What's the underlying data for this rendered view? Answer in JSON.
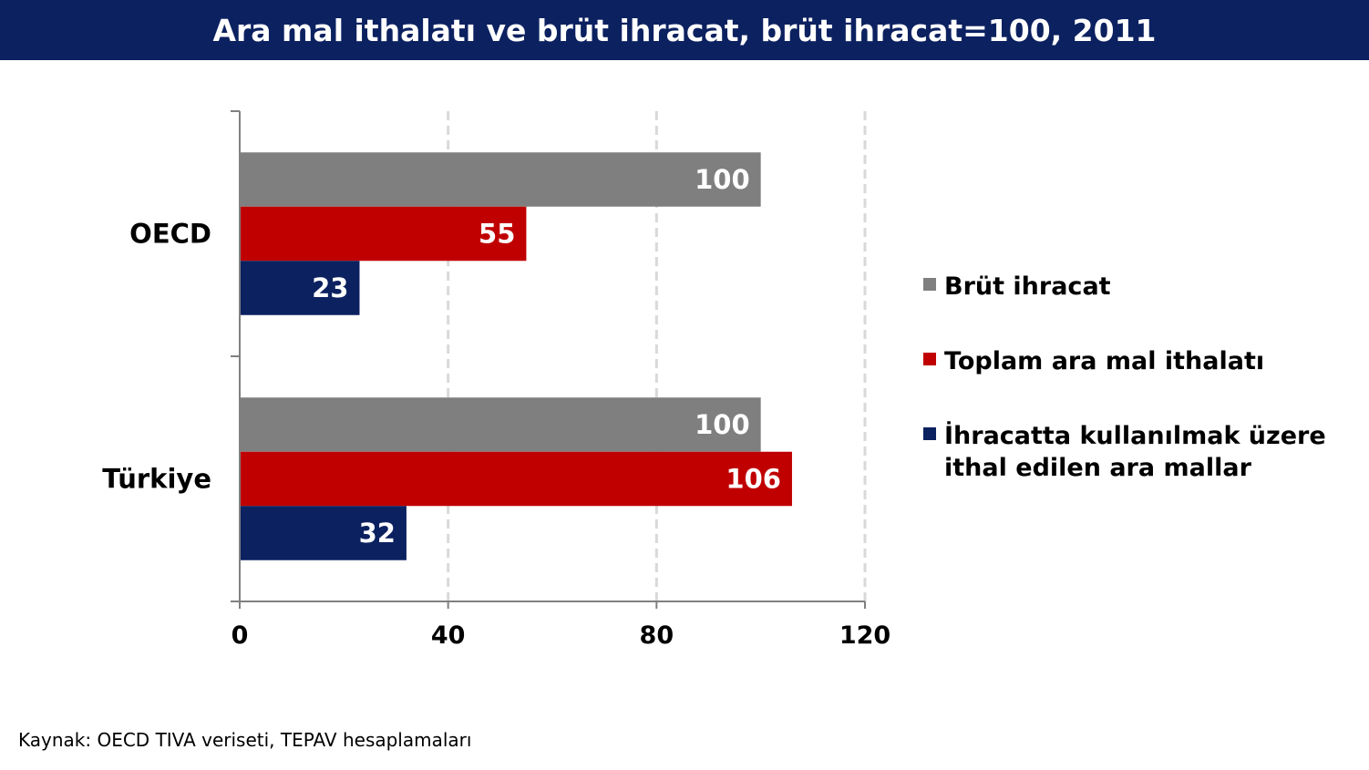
{
  "chart_data": {
    "type": "bar",
    "orientation": "horizontal",
    "title": "Ara mal ithalatı ve brüt ihracat, brüt ihracat=100, 2011",
    "categories": [
      "OECD",
      "Türkiye"
    ],
    "series": [
      {
        "name": "Brüt ihracat",
        "values": [
          100,
          100
        ],
        "color": "#7f7f7f"
      },
      {
        "name": "Toplam ara mal ithalatı",
        "values": [
          55,
          106
        ],
        "color": "#c00000"
      },
      {
        "name": "İhracatta kullanılmak üzere ithal edilen ara mallar",
        "legend_lines": [
          "İhracatta kullanılmak üzere",
          "ithal edilen ara mallar"
        ],
        "values": [
          23,
          32
        ],
        "color": "#0c2160"
      }
    ],
    "xlim": [
      0,
      120
    ],
    "xticks": [
      0,
      40,
      80,
      120
    ],
    "gridlines": "vertical dashed",
    "legend_position": "right",
    "xlabel": "",
    "ylabel": ""
  },
  "source_note": "Kaynak: OECD TIVA veriseti, TEPAV hesaplamaları"
}
